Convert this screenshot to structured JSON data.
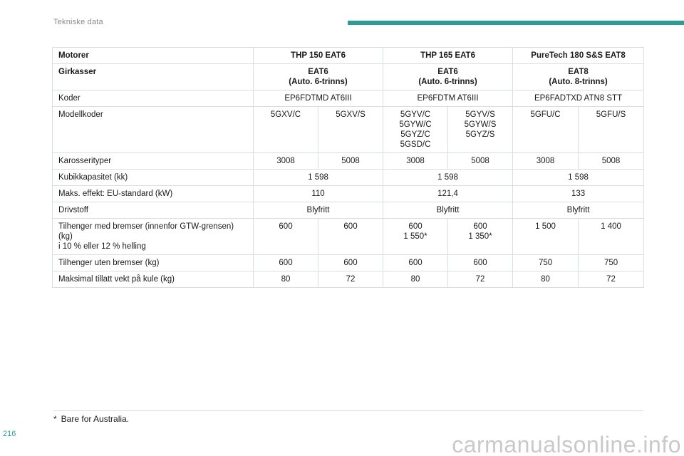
{
  "page": {
    "section_title": "Tekniske data",
    "page_number": "216",
    "watermark": "carmanualsonline.info",
    "accent_color": "#2a9d9a"
  },
  "table": {
    "motorer": {
      "label": "Motorer",
      "v": [
        "THP 150 EAT6",
        "THP 165 EAT6",
        "PureTech 180 S&S EAT8"
      ]
    },
    "girkasser": {
      "label": "Girkasser",
      "v": [
        "EAT6\n(Auto. 6-trinns)",
        "EAT6\n(Auto. 6-trinns)",
        "EAT8\n(Auto. 8-trinns)"
      ]
    },
    "koder": {
      "label": "Koder",
      "v": [
        "EP6FDTMD AT6III",
        "EP6FDTM AT6III",
        "EP6FADTXD ATN8 STT"
      ]
    },
    "modellkoder": {
      "label": "Modellkoder",
      "v": [
        "5GXV/C",
        "5GXV/S",
        "5GYV/C\n5GYW/C\n5GYZ/C\n5GSD/C",
        "5GYV/S\n5GYW/S\n5GYZ/S",
        "5GFU/C",
        "5GFU/S"
      ]
    },
    "karosserityper": {
      "label": "Karosserityper",
      "v": [
        "3008",
        "5008",
        "3008",
        "5008",
        "3008",
        "5008"
      ]
    },
    "kubikkapasitet": {
      "label": "Kubikkapasitet (kk)",
      "v": [
        "1 598",
        "1 598",
        "1 598"
      ]
    },
    "maks_effekt": {
      "label": "Maks. effekt: EU-standard (kW)",
      "v": [
        "110",
        "121,4",
        "133"
      ]
    },
    "drivstoff": {
      "label": "Drivstoff",
      "v": [
        "Blyfritt",
        "Blyfritt",
        "Blyfritt"
      ]
    },
    "tilhenger_med_bremser": {
      "label": "Tilhenger med bremser (innenfor GTW-grensen)\n(kg)\ni 10 % eller 12 % helling",
      "v": [
        "600",
        "600",
        "600\n1 550*",
        "600\n1 350*",
        "1 500",
        "1 400"
      ]
    },
    "tilhenger_uten_bremser": {
      "label": "Tilhenger uten bremser (kg)",
      "v": [
        "600",
        "600",
        "600",
        "600",
        "750",
        "750"
      ]
    },
    "maks_vekt_kule": {
      "label": "Maksimal tillatt vekt på kule (kg)",
      "v": [
        "80",
        "72",
        "80",
        "72",
        "80",
        "72"
      ]
    }
  },
  "footnote": {
    "mark": "*",
    "text": "Bare for Australia."
  }
}
